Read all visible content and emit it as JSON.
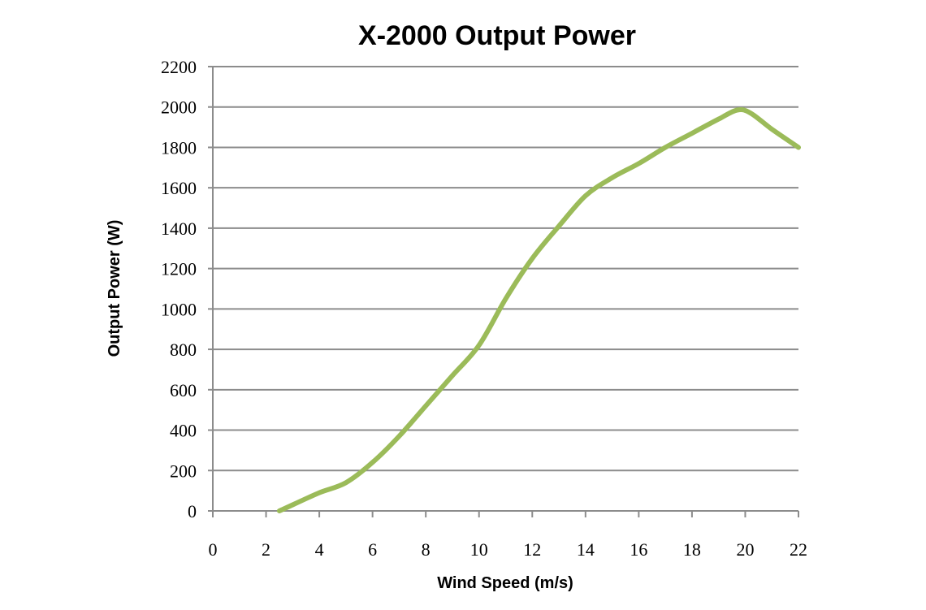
{
  "chart_data": {
    "type": "line",
    "title": "X-2000 Output Power",
    "xlabel": "Wind Speed (m/s)",
    "ylabel": "Output Power (W)",
    "xlim": [
      0,
      22
    ],
    "ylim": [
      0,
      2200
    ],
    "x_ticks": [
      0,
      2,
      4,
      6,
      8,
      10,
      12,
      14,
      16,
      18,
      20,
      22
    ],
    "y_ticks": [
      0,
      200,
      400,
      600,
      800,
      1000,
      1200,
      1400,
      1600,
      1800,
      2000,
      2200
    ],
    "grid": "horizontal",
    "legend": "none",
    "series_color": "#9bbb59",
    "series": [
      {
        "x": [
          2.5,
          3,
          4,
          5,
          6,
          7,
          8,
          9,
          10,
          11,
          12,
          13,
          14,
          15,
          16,
          17,
          18,
          19,
          19.7,
          20.2,
          21,
          22
        ],
        "values": [
          0,
          30,
          90,
          140,
          240,
          370,
          520,
          670,
          820,
          1050,
          1250,
          1410,
          1560,
          1650,
          1720,
          1800,
          1870,
          1940,
          1985,
          1970,
          1890,
          1800
        ]
      }
    ]
  }
}
